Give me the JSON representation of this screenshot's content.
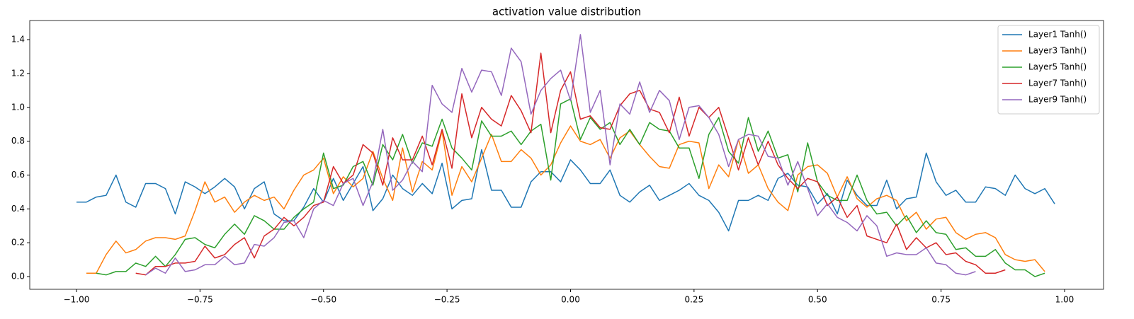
{
  "chart_data": {
    "type": "line",
    "title": "activation value distribution",
    "x": [
      -1.0,
      -0.98,
      -0.96,
      -0.94,
      -0.92,
      -0.9,
      -0.88,
      -0.86,
      -0.84,
      -0.82,
      -0.8,
      -0.78,
      -0.76,
      -0.74,
      -0.72,
      -0.7,
      -0.68,
      -0.66,
      -0.64,
      -0.62,
      -0.6,
      -0.58,
      -0.56,
      -0.54,
      -0.52,
      -0.5,
      -0.48,
      -0.46,
      -0.44,
      -0.42,
      -0.4,
      -0.38,
      -0.36,
      -0.34,
      -0.32,
      -0.3,
      -0.28,
      -0.26,
      -0.24,
      -0.22,
      -0.2,
      -0.18,
      -0.16,
      -0.14,
      -0.12,
      -0.1,
      -0.08,
      -0.06,
      -0.04,
      -0.02,
      0.0,
      0.02,
      0.04,
      0.06,
      0.08,
      0.1,
      0.12,
      0.14,
      0.16,
      0.18,
      0.2,
      0.22,
      0.24,
      0.26,
      0.28,
      0.3,
      0.32,
      0.34,
      0.36,
      0.38,
      0.4,
      0.42,
      0.44,
      0.46,
      0.48,
      0.5,
      0.52,
      0.54,
      0.56,
      0.58,
      0.6,
      0.62,
      0.64,
      0.66,
      0.68,
      0.7,
      0.72,
      0.74,
      0.76,
      0.78,
      0.8,
      0.82,
      0.84,
      0.86,
      0.88,
      0.9,
      0.92,
      0.94,
      0.96,
      0.98
    ],
    "series": [
      {
        "name": "Layer1 Tanh()",
        "color": "#1f77b4",
        "values": [
          0.44,
          0.44,
          0.47,
          0.48,
          0.6,
          0.44,
          0.41,
          0.55,
          0.55,
          0.52,
          0.37,
          0.56,
          0.53,
          0.49,
          0.53,
          0.58,
          0.53,
          0.4,
          0.52,
          0.56,
          0.37,
          0.33,
          0.33,
          0.41,
          0.52,
          0.44,
          0.58,
          0.45,
          0.55,
          0.65,
          0.39,
          0.46,
          0.6,
          0.52,
          0.48,
          0.55,
          0.49,
          0.67,
          0.4,
          0.45,
          0.46,
          0.75,
          0.51,
          0.51,
          0.41,
          0.41,
          0.56,
          0.62,
          0.62,
          0.56,
          0.69,
          0.63,
          0.55,
          0.55,
          0.63,
          0.48,
          0.44,
          0.5,
          0.54,
          0.45,
          0.48,
          0.51,
          0.55,
          0.48,
          0.45,
          0.38,
          0.27,
          0.45,
          0.45,
          0.48,
          0.45,
          0.58,
          0.61,
          0.54,
          0.53,
          0.43,
          0.49,
          0.37,
          0.57,
          0.48,
          0.42,
          0.42,
          0.57,
          0.4,
          0.46,
          0.47,
          0.73,
          0.56,
          0.48,
          0.51,
          0.44,
          0.44,
          0.53,
          0.52,
          0.48,
          0.6,
          0.52,
          0.49,
          0.52,
          0.43
        ]
      },
      {
        "name": "Layer3 Tanh()",
        "color": "#ff7f0e",
        "values": [
          null,
          0.02,
          0.02,
          0.13,
          0.21,
          0.14,
          0.16,
          0.21,
          0.23,
          0.23,
          0.22,
          0.24,
          0.39,
          0.56,
          0.44,
          0.47,
          0.38,
          0.44,
          0.48,
          0.45,
          0.47,
          0.4,
          0.51,
          0.6,
          0.63,
          0.7,
          0.49,
          0.59,
          0.53,
          0.58,
          0.74,
          0.58,
          0.45,
          0.76,
          0.5,
          0.68,
          0.63,
          0.86,
          0.48,
          0.65,
          0.56,
          0.7,
          0.84,
          0.68,
          0.68,
          0.75,
          0.7,
          0.6,
          0.66,
          0.79,
          0.89,
          0.8,
          0.78,
          0.81,
          0.7,
          0.82,
          0.86,
          0.78,
          0.71,
          0.65,
          0.64,
          0.78,
          0.8,
          0.79,
          0.52,
          0.66,
          0.59,
          0.81,
          0.61,
          0.66,
          0.52,
          0.44,
          0.39,
          0.6,
          0.65,
          0.66,
          0.61,
          0.47,
          0.59,
          0.46,
          0.41,
          0.46,
          0.48,
          0.45,
          0.33,
          0.38,
          0.28,
          0.34,
          0.35,
          0.26,
          0.22,
          0.25,
          0.26,
          0.23,
          0.13,
          0.1,
          0.09,
          0.1,
          0.03,
          null
        ]
      },
      {
        "name": "Layer5 Tanh()",
        "color": "#2ca02c",
        "values": [
          null,
          null,
          0.02,
          0.01,
          0.03,
          0.03,
          0.08,
          0.06,
          0.12,
          0.06,
          0.13,
          0.22,
          0.23,
          0.19,
          0.17,
          0.25,
          0.31,
          0.25,
          0.36,
          0.33,
          0.28,
          0.28,
          0.35,
          0.4,
          0.44,
          0.73,
          0.52,
          0.54,
          0.65,
          0.68,
          0.54,
          0.78,
          0.69,
          0.84,
          0.67,
          0.79,
          0.77,
          0.93,
          0.76,
          0.7,
          0.63,
          0.92,
          0.83,
          0.83,
          0.86,
          0.78,
          0.86,
          0.9,
          0.57,
          1.02,
          1.05,
          0.81,
          0.94,
          0.87,
          0.91,
          0.78,
          0.87,
          0.78,
          0.91,
          0.87,
          0.86,
          0.76,
          0.76,
          0.58,
          0.84,
          0.94,
          0.74,
          0.67,
          0.94,
          0.74,
          0.86,
          0.7,
          0.72,
          0.5,
          0.79,
          0.56,
          0.48,
          0.45,
          0.45,
          0.6,
          0.45,
          0.37,
          0.38,
          0.3,
          0.36,
          0.26,
          0.33,
          0.26,
          0.25,
          0.16,
          0.17,
          0.12,
          0.12,
          0.16,
          0.08,
          0.04,
          0.04,
          0.0,
          0.02,
          null
        ]
      },
      {
        "name": "Layer7 Tanh()",
        "color": "#d62728",
        "values": [
          null,
          null,
          null,
          null,
          null,
          null,
          0.02,
          0.01,
          0.06,
          0.06,
          0.08,
          0.08,
          0.09,
          0.18,
          0.11,
          0.13,
          0.19,
          0.23,
          0.11,
          0.24,
          0.28,
          0.35,
          0.3,
          0.35,
          0.42,
          0.44,
          0.65,
          0.55,
          0.6,
          0.78,
          0.73,
          0.54,
          0.82,
          0.69,
          0.69,
          0.83,
          0.66,
          0.87,
          0.64,
          1.08,
          0.82,
          1.0,
          0.93,
          0.89,
          1.07,
          0.98,
          0.85,
          1.32,
          0.85,
          1.1,
          1.21,
          0.93,
          0.95,
          0.88,
          0.87,
          1.01,
          1.08,
          1.1,
          0.99,
          0.97,
          0.85,
          1.06,
          0.83,
          1.0,
          0.94,
          1.0,
          0.82,
          0.63,
          0.82,
          0.66,
          0.8,
          0.66,
          0.58,
          0.52,
          0.58,
          0.56,
          0.42,
          0.47,
          0.35,
          0.42,
          0.24,
          0.22,
          0.2,
          0.31,
          0.16,
          0.23,
          0.17,
          0.2,
          0.13,
          0.14,
          0.09,
          0.07,
          0.02,
          0.02,
          0.04,
          null,
          null,
          null,
          null,
          null
        ]
      },
      {
        "name": "Layer9 Tanh()",
        "color": "#9467bd",
        "values": [
          null,
          null,
          null,
          null,
          null,
          null,
          null,
          0.01,
          0.05,
          0.02,
          0.11,
          0.03,
          0.04,
          0.07,
          0.07,
          0.12,
          0.07,
          0.08,
          0.19,
          0.18,
          0.23,
          0.32,
          0.33,
          0.23,
          0.4,
          0.45,
          0.42,
          0.55,
          0.58,
          0.42,
          0.56,
          0.87,
          0.51,
          0.57,
          0.68,
          0.62,
          1.13,
          1.02,
          0.97,
          1.23,
          1.09,
          1.22,
          1.21,
          1.07,
          1.35,
          1.27,
          0.96,
          1.1,
          1.17,
          1.22,
          1.04,
          1.43,
          0.97,
          1.1,
          0.66,
          1.02,
          0.96,
          1.15,
          0.97,
          1.1,
          1.04,
          0.81,
          1.0,
          1.01,
          0.94,
          0.84,
          0.65,
          0.81,
          0.84,
          0.83,
          0.71,
          0.7,
          0.54,
          0.68,
          0.52,
          0.36,
          0.43,
          0.35,
          0.32,
          0.27,
          0.36,
          0.3,
          0.12,
          0.14,
          0.13,
          0.13,
          0.17,
          0.08,
          0.07,
          0.02,
          0.01,
          0.03,
          null,
          null,
          null,
          null,
          null,
          null,
          null,
          null
        ]
      }
    ],
    "xlim": [
      -1.0946,
      1.0789
    ],
    "ylim": [
      -0.075,
      1.513
    ],
    "xticks": [
      {
        "value": -1.0,
        "label": "−1.00"
      },
      {
        "value": -0.75,
        "label": "−0.75"
      },
      {
        "value": -0.5,
        "label": "−0.50"
      },
      {
        "value": -0.25,
        "label": "−0.25"
      },
      {
        "value": 0,
        "label": "0.00"
      },
      {
        "value": 0.25,
        "label": "0.25"
      },
      {
        "value": 0.5,
        "label": "0.50"
      },
      {
        "value": 0.75,
        "label": "0.75"
      },
      {
        "value": 1.0,
        "label": "1.00"
      }
    ],
    "yticks": [
      {
        "value": 0,
        "label": "0.0"
      },
      0.2,
      0.4,
      0.6,
      0.8,
      {
        "value": 1.0,
        "label": "1.0"
      },
      1.2,
      1.4
    ],
    "grid": false,
    "legend": "upper right"
  }
}
